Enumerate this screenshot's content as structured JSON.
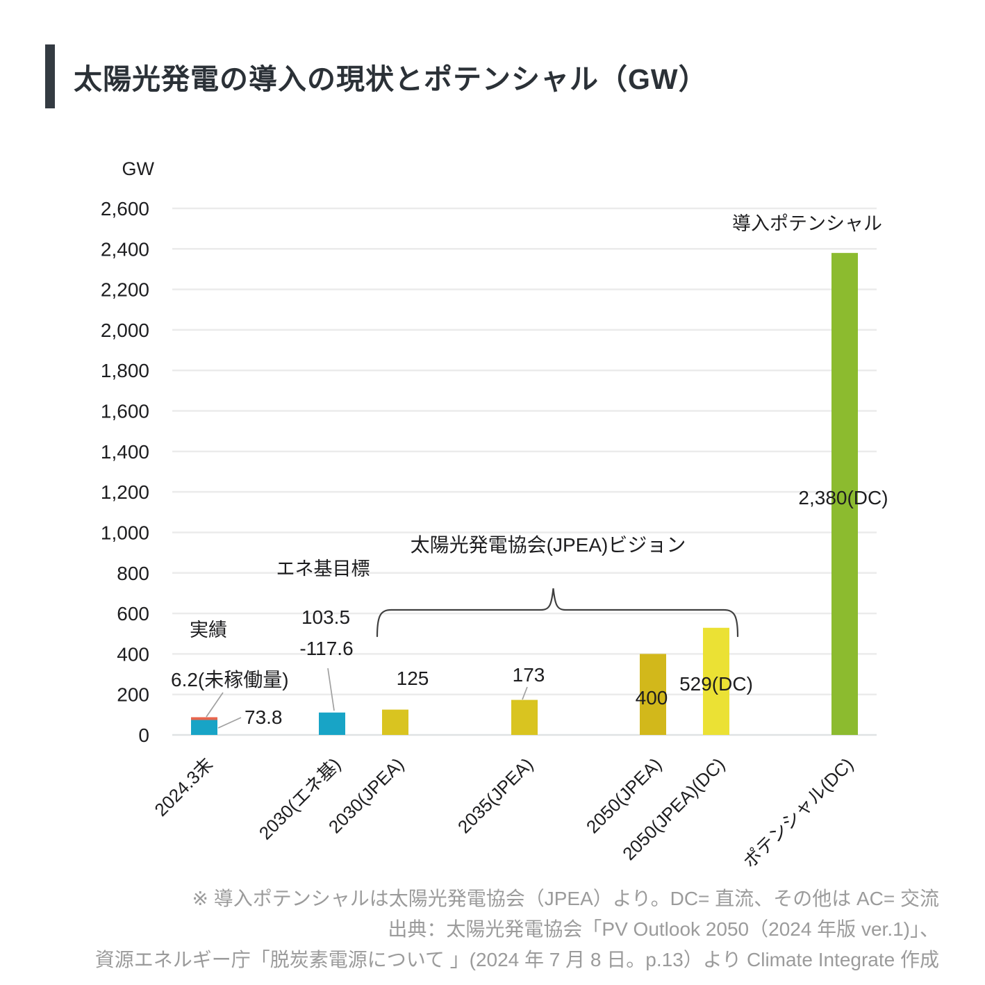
{
  "header": {
    "title": "太陽光発電の導入の現状とポテンシャル（GW）"
  },
  "chart_data": {
    "type": "bar",
    "title": "太陽光発電の導入の現状とポテンシャル（GW）",
    "unit": "GW",
    "ylim": [
      0,
      2600
    ],
    "ytick_step": 200,
    "grid": true,
    "legend_position": "none",
    "categories": [
      "2024.3末",
      "2030(エネ基)",
      "2030(JPEA)",
      "2035(JPEA)",
      "2050(JPEA)",
      "2050(JPEA)(DC)",
      "ポテンシャル(DC)"
    ],
    "bars": [
      {
        "category": "2024.3末",
        "value": 73.8,
        "color": "#18a4c6",
        "cap": {
          "value": 6.2,
          "color": "#e8654d"
        },
        "labels": [
          "6.2(未稼働量)",
          "73.8"
        ]
      },
      {
        "category": "2030(エネ基)",
        "value": 110.6,
        "color": "#18a4c6",
        "labels": [
          "103.5",
          "-117.6"
        ]
      },
      {
        "category": "2030(JPEA)",
        "value": 125,
        "color": "#d9c420",
        "labels": [
          "125"
        ]
      },
      {
        "category": "2035(JPEA)",
        "value": 173,
        "color": "#d9c420",
        "labels": [
          "173"
        ]
      },
      {
        "category": "2050(JPEA)",
        "value": 400,
        "color": "#d2b81b",
        "labels": [
          "400"
        ]
      },
      {
        "category": "2050(JPEA)(DC)",
        "value": 529,
        "color": "#ebe134",
        "labels": [
          "529(DC)"
        ]
      },
      {
        "category": "ポテンシャル(DC)",
        "value": 2380,
        "color": "#8cbb2f",
        "labels": [
          "2,380(DC)"
        ]
      }
    ],
    "annotations": [
      {
        "id": "jisseki",
        "text": "実績"
      },
      {
        "id": "eneki-mokuhyo",
        "text": "エネ基目標"
      },
      {
        "id": "jpea-vision",
        "text": "太陽光発電協会(JPEA)ビジョン"
      },
      {
        "id": "dounyu-potential",
        "text": "導入ポテンシャル"
      }
    ],
    "colors": {
      "teal": "#18a4c6",
      "red_cap": "#e8654d",
      "mustard": "#d9c420",
      "gold": "#d2b81b",
      "yellow": "#ebe134",
      "green": "#8cbb2f",
      "grid": "#ebebeb",
      "zero_line": "#dfe2e3",
      "text": "#1d1d1f",
      "leader_line": "#a0a0a0",
      "brace": "#404040"
    }
  },
  "footer": {
    "lines": [
      "※ 導入ポテンシャルは太陽光発電協会（JPEA）より。DC= 直流、その他は AC= 交流",
      "出典：太陽光発電協会「PV Outlook 2050（2024 年版 ver.1)」、",
      "資源エネルギー庁「脱炭素電源について 」(2024 年 7 月 8 日。p.13）より Climate Integrate 作成"
    ]
  }
}
